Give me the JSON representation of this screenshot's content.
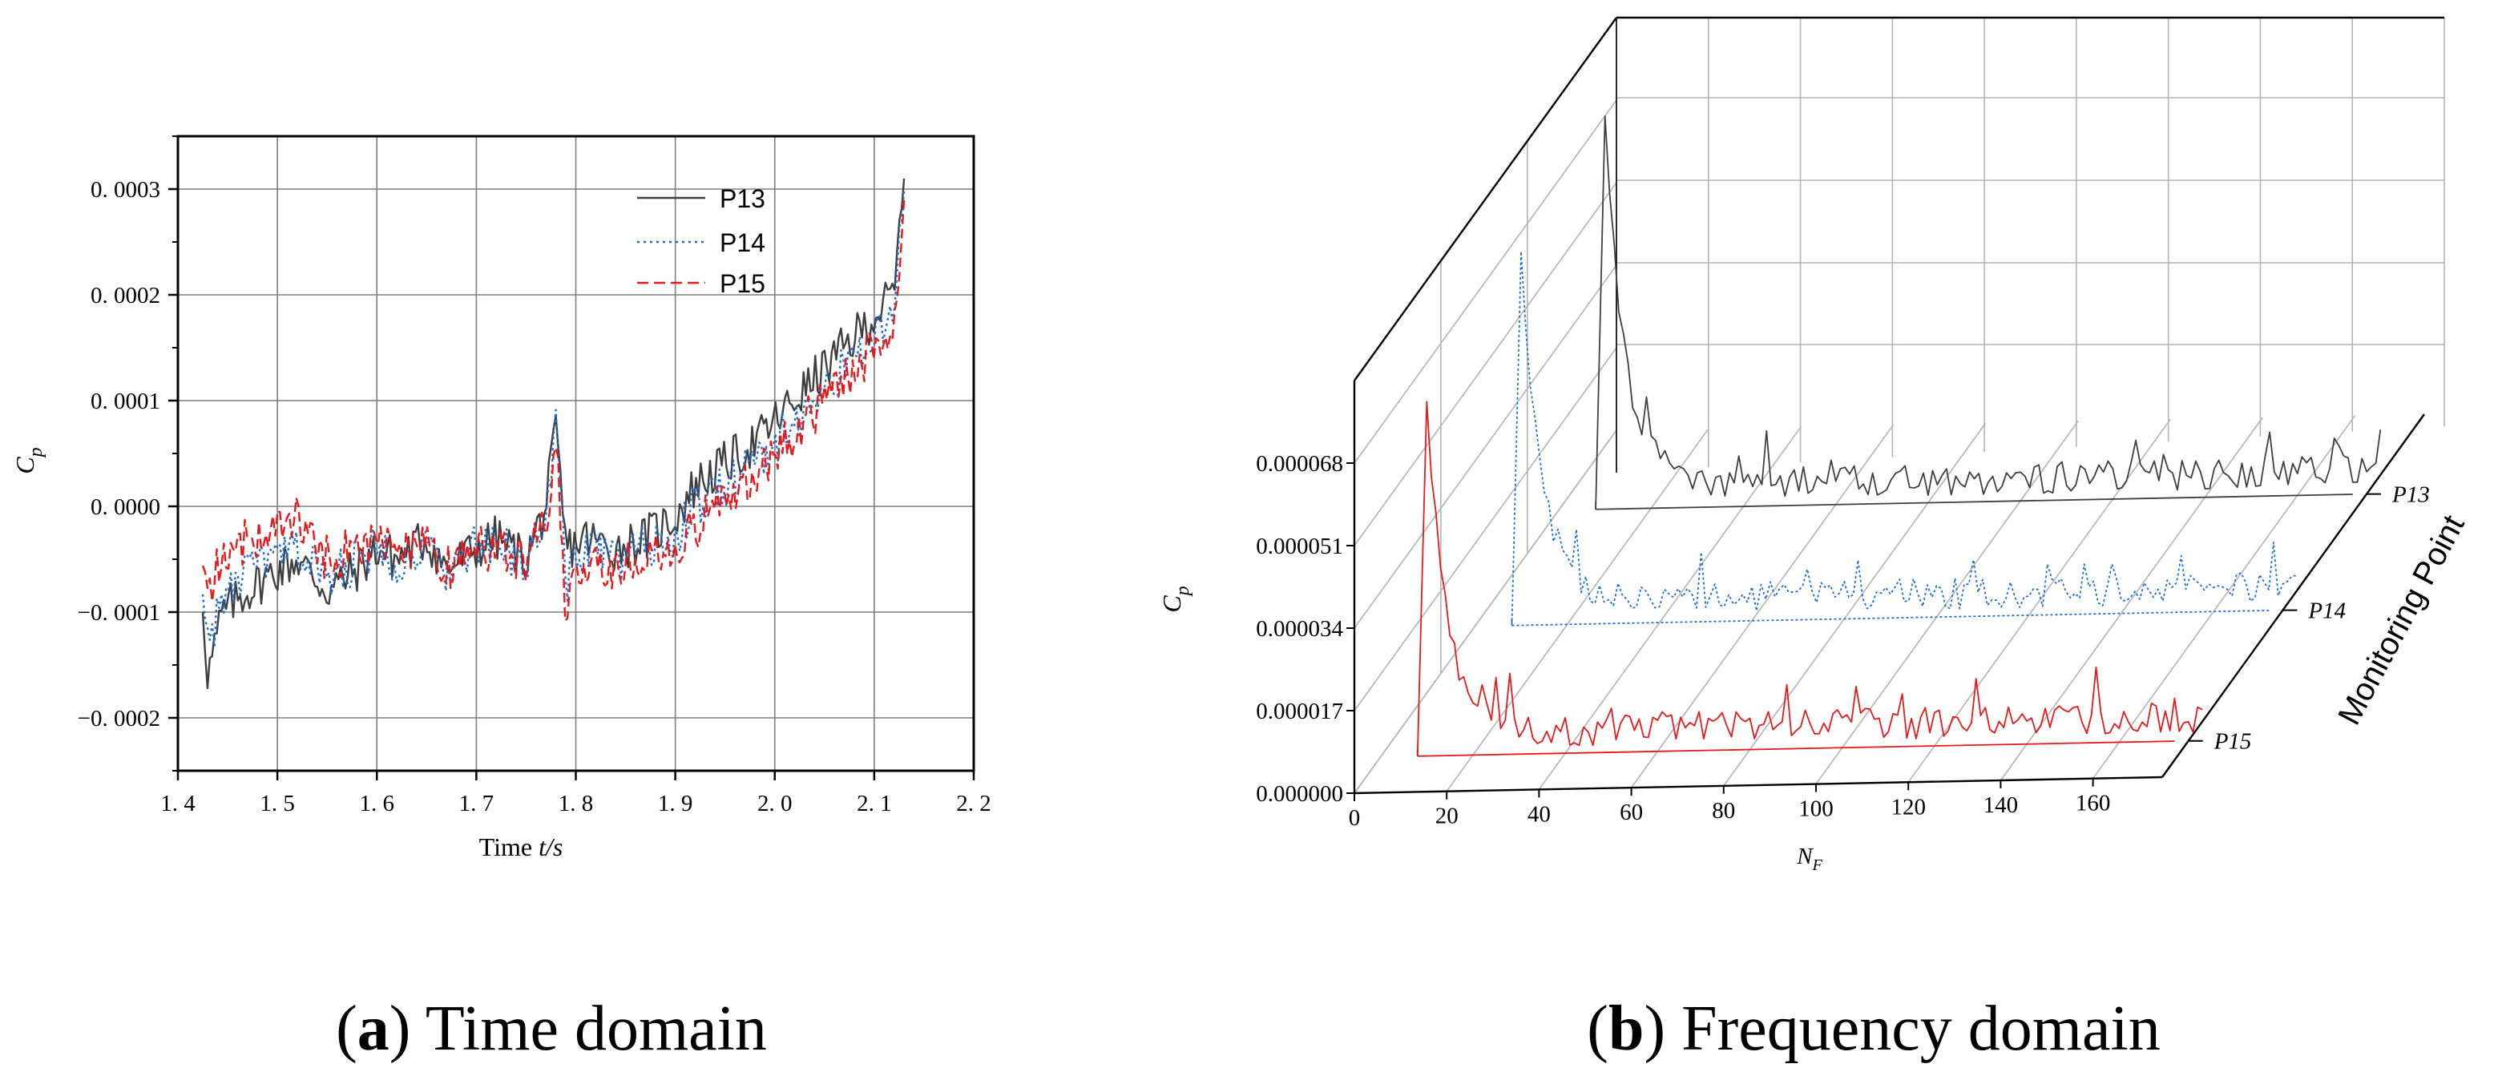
{
  "colors": {
    "p13": "#3f3f3f",
    "p14": "#1f6fd0",
    "p15": "#e8191b",
    "grid": "#7f7f7f"
  },
  "captions": {
    "a_letter": "a",
    "a_text": " Time domain",
    "b_letter": "b",
    "b_text": " Frequency domain"
  },
  "chart_data": [
    {
      "type": "line",
      "title": "Time domain",
      "xlabel_main": "Time ",
      "xlabel_italic": "t/s",
      "ylabel": "C",
      "ylabel_sub": "p",
      "xlim": [
        1.4,
        2.2
      ],
      "ylim": [
        -0.00025,
        0.00035
      ],
      "x_ticks": [
        1.4,
        1.5,
        1.6,
        1.7,
        1.8,
        1.9,
        2.0,
        2.1,
        2.2
      ],
      "x_tick_labels": [
        "1. 4",
        "1. 5",
        "1. 6",
        "1. 7",
        "1. 8",
        "1. 9",
        "2. 0",
        "2. 1",
        "2. 2"
      ],
      "y_ticks": [
        -0.0002,
        -0.0001,
        0.0,
        0.0001,
        0.0002,
        0.0003
      ],
      "y_tick_labels": [
        "−0. 0002",
        "−0. 0001",
        "0. 0000",
        "0. 0001",
        "0. 0002",
        "0. 0003"
      ],
      "legend_position": "top-right",
      "x_anchor": [
        1.425,
        1.43,
        1.445,
        1.47,
        1.5,
        1.52,
        1.55,
        1.58,
        1.6,
        1.62,
        1.65,
        1.67,
        1.7,
        1.72,
        1.75,
        1.77,
        1.78,
        1.79,
        1.81,
        1.84,
        1.87,
        1.9,
        1.92,
        1.95,
        1.98,
        2.0,
        2.02,
        2.04,
        2.06,
        2.08,
        2.1,
        2.12,
        2.13
      ],
      "series": [
        {
          "name": "P13",
          "style": "solid",
          "anchors": [
            -9e-05,
            -0.00016,
            -0.0001,
            -8e-05,
            -6e-05,
            -5e-05,
            -8e-05,
            -6e-05,
            -4e-05,
            -5e-05,
            -3e-05,
            -6e-05,
            -4e-05,
            -3e-05,
            -5e-05,
            0.0,
            7e-05,
            -4e-05,
            -3e-05,
            -4e-05,
            -3e-05,
            -1e-05,
            2e-05,
            4e-05,
            6e-05,
            8e-05,
            0.0001,
            0.00012,
            0.00014,
            0.00016,
            0.00018,
            0.0002,
            0.00031
          ]
        },
        {
          "name": "P14",
          "style": "dotted",
          "anchors": [
            -7e-05,
            -0.00013,
            -9e-05,
            -6e-05,
            -5e-05,
            -4e-05,
            -7e-05,
            -5e-05,
            -4e-05,
            -5e-05,
            -4e-05,
            -6e-05,
            -4e-05,
            -4e-05,
            -5e-05,
            -1e-05,
            8e-05,
            -7e-05,
            -4e-05,
            -5e-05,
            -4e-05,
            -3e-05,
            0.0,
            2e-05,
            4e-05,
            6e-05,
            8e-05,
            0.0001,
            0.00012,
            0.00014,
            0.00016,
            0.00018,
            0.0003
          ]
        },
        {
          "name": "P15",
          "style": "dashed",
          "anchors": [
            -4e-05,
            -8e-05,
            -5e-05,
            -3e-05,
            -2e-05,
            -1e-05,
            -5e-05,
            -4e-05,
            -3e-05,
            -4e-05,
            -4e-05,
            -6e-05,
            -4e-05,
            -4e-05,
            -5e-05,
            -2e-05,
            7e-05,
            -0.0001,
            -5e-05,
            -6e-05,
            -5e-05,
            -4e-05,
            -2e-05,
            1e-05,
            3e-05,
            5e-05,
            7e-05,
            9e-05,
            0.00011,
            0.00013,
            0.00015,
            0.00017,
            0.00029
          ]
        }
      ]
    },
    {
      "type": "line",
      "title": "Frequency domain",
      "xlabel": "N",
      "xlabel_sub": "F",
      "ylabel": "C",
      "ylabel_sub": "p",
      "zlabel": "Monitoring Point",
      "xlim": [
        0,
        175
      ],
      "zlim": [
        0.0,
        8.5e-05
      ],
      "x_ticks": [
        0,
        20,
        40,
        60,
        80,
        100,
        120,
        140,
        160
      ],
      "x_tick_labels": [
        "0",
        "20",
        "40",
        "60",
        "80",
        "100",
        "120",
        "140",
        "160"
      ],
      "z_ticks": [
        0.0,
        1.7e-05,
        3.4e-05,
        5.1e-05,
        6.8e-05
      ],
      "z_tick_labels": [
        "0.000000",
        "0.000017",
        "0.000034",
        "0.000051",
        "0.000068"
      ],
      "series": [
        {
          "name": "P13",
          "style": "solid",
          "peak": 8.1e-05,
          "peak_nf": 2
        },
        {
          "name": "P14",
          "style": "dotted",
          "peak": 7.7e-05,
          "peak_nf": 2
        },
        {
          "name": "P15",
          "style": "solid",
          "peak": 7.3e-05,
          "peak_nf": 2
        }
      ]
    }
  ]
}
